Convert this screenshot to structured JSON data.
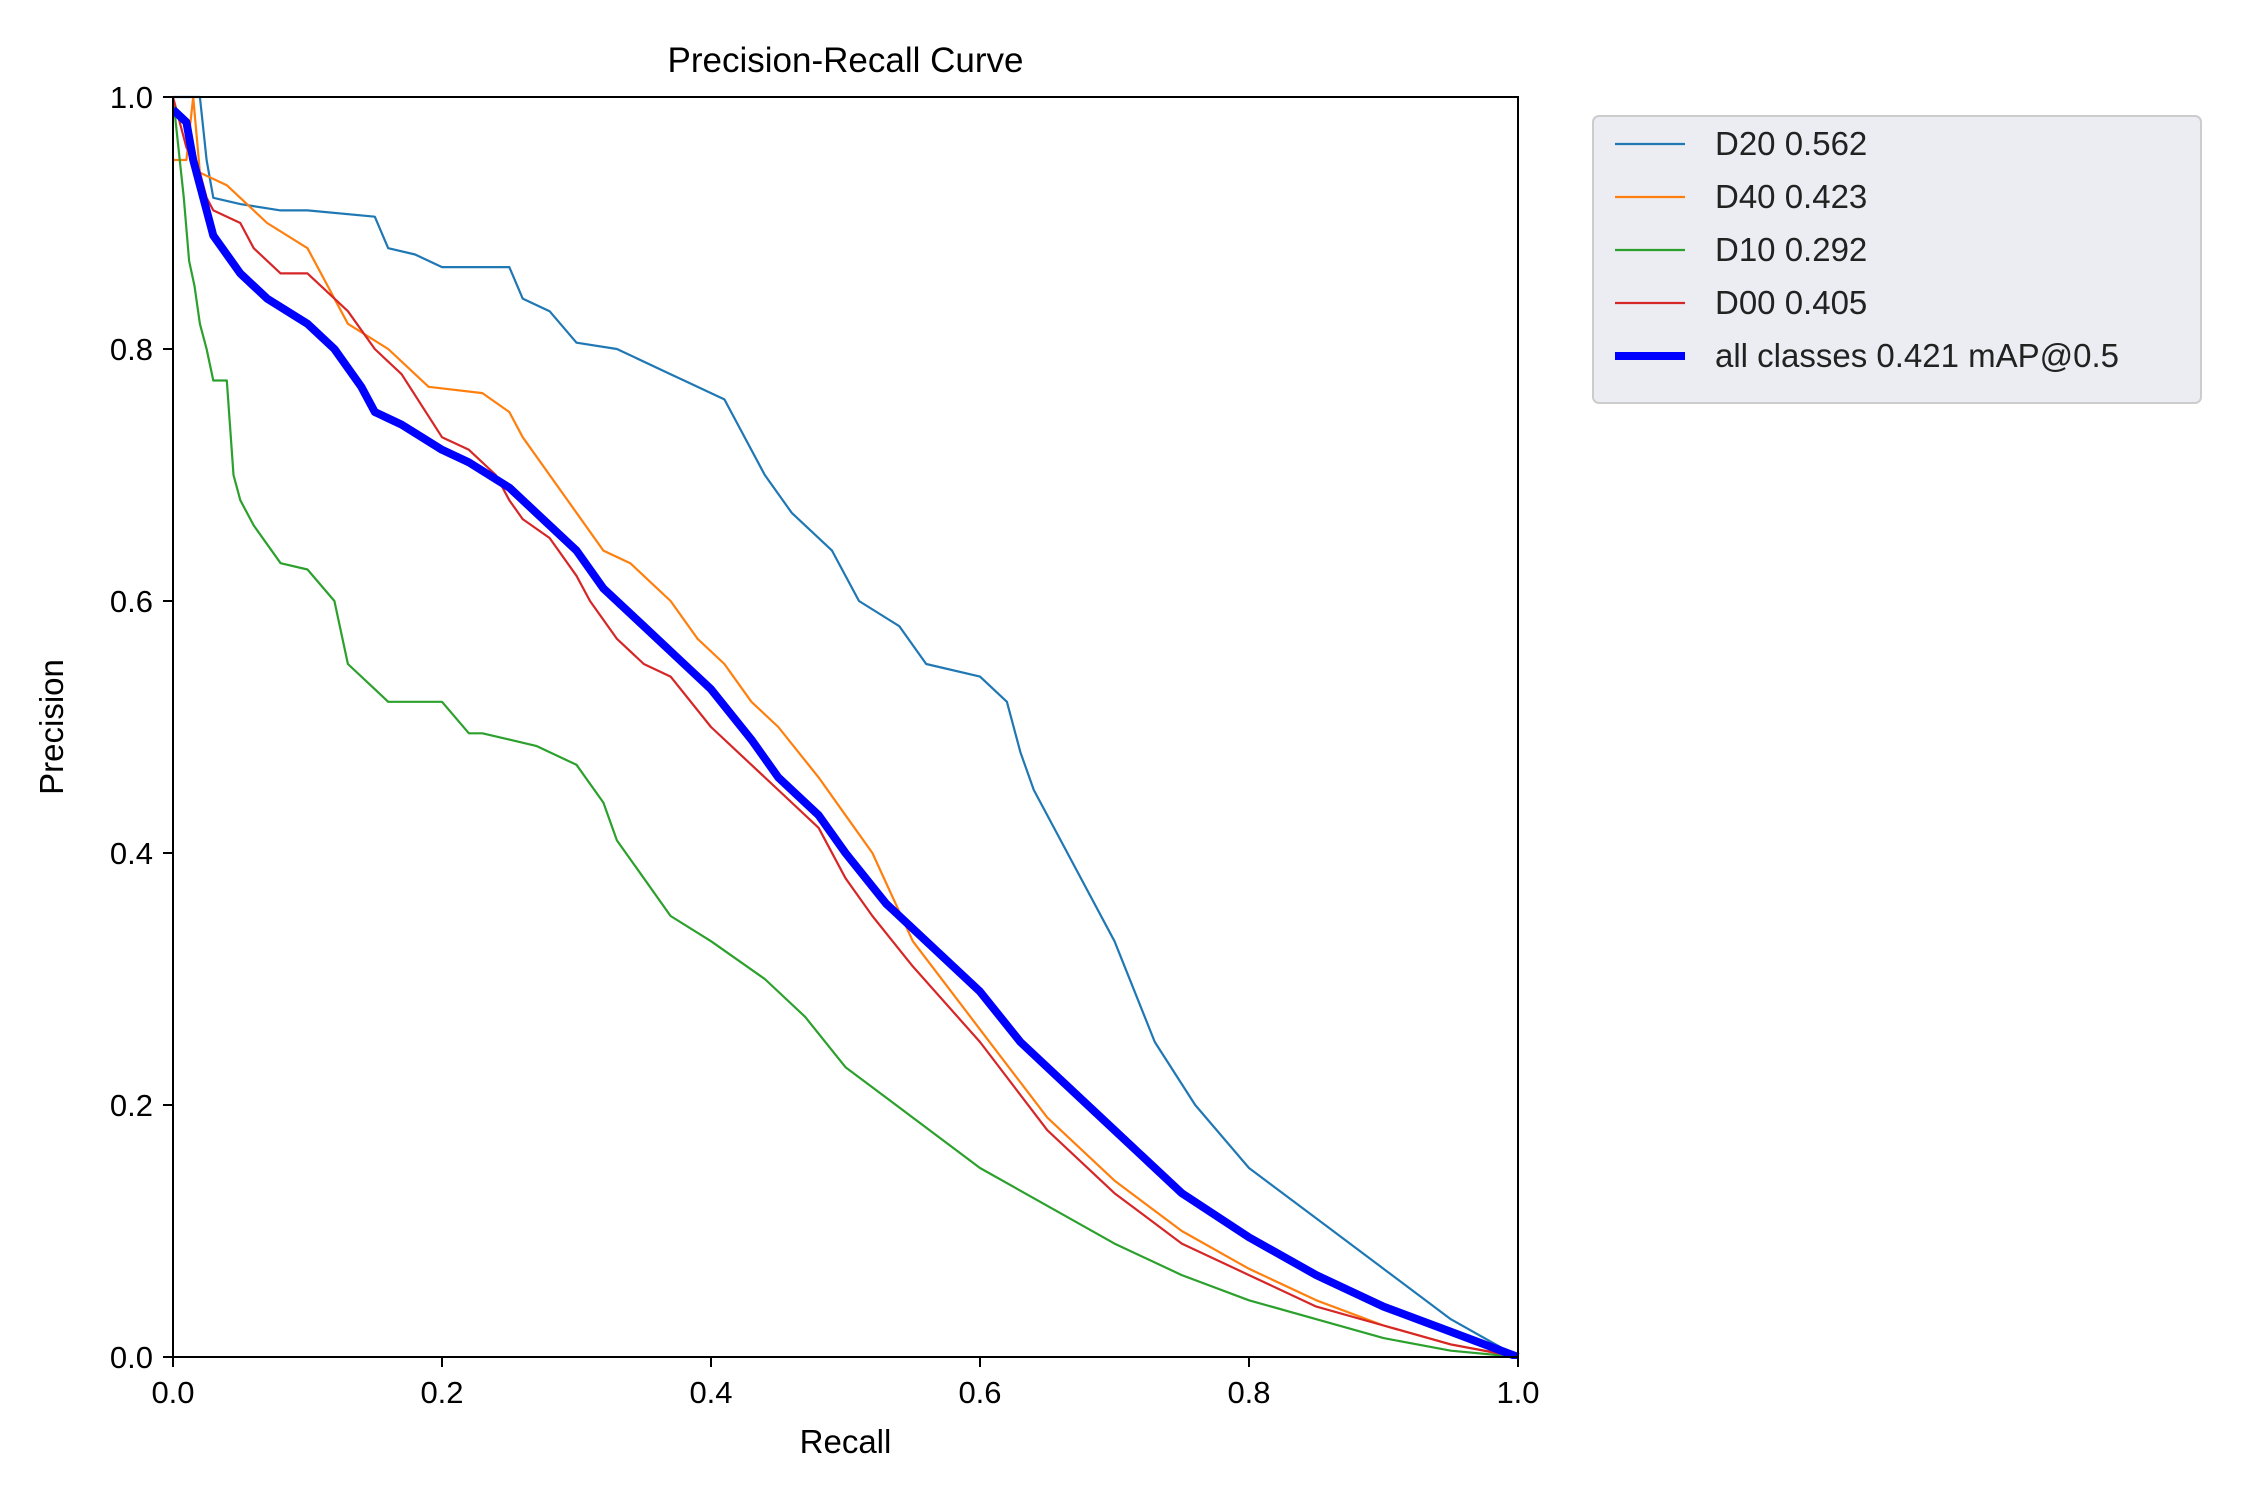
{
  "chart_data": {
    "type": "line",
    "title": "Precision-Recall Curve",
    "xlabel": "Recall",
    "ylabel": "Precision",
    "xlim": [
      0.0,
      1.0
    ],
    "ylim": [
      0.0,
      1.0
    ],
    "xticks": [
      "0.0",
      "0.2",
      "0.4",
      "0.6",
      "0.8",
      "1.0"
    ],
    "yticks": [
      "0.0",
      "0.2",
      "0.4",
      "0.6",
      "0.8",
      "1.0"
    ],
    "grid": false,
    "legend_position": "outside-top-right",
    "series": [
      {
        "name": "D20 0.562",
        "color": "#1f77b4",
        "width": "thin",
        "x": [
          0.0,
          0.01,
          0.02,
          0.025,
          0.03,
          0.05,
          0.08,
          0.1,
          0.15,
          0.16,
          0.18,
          0.2,
          0.25,
          0.26,
          0.28,
          0.3,
          0.33,
          0.37,
          0.4,
          0.41,
          0.44,
          0.46,
          0.49,
          0.51,
          0.54,
          0.56,
          0.6,
          0.62,
          0.63,
          0.64,
          0.66,
          0.7,
          0.73,
          0.76,
          0.8,
          0.85,
          0.9,
          0.95,
          1.0
        ],
        "y": [
          1.0,
          1.0,
          1.0,
          0.95,
          0.92,
          0.915,
          0.91,
          0.91,
          0.905,
          0.88,
          0.875,
          0.865,
          0.865,
          0.84,
          0.83,
          0.805,
          0.8,
          0.78,
          0.765,
          0.76,
          0.7,
          0.67,
          0.64,
          0.6,
          0.58,
          0.55,
          0.54,
          0.52,
          0.48,
          0.45,
          0.41,
          0.33,
          0.25,
          0.2,
          0.15,
          0.11,
          0.07,
          0.03,
          0.0
        ]
      },
      {
        "name": "D40 0.423",
        "color": "#ff7f0e",
        "width": "thin",
        "x": [
          0.0,
          0.01,
          0.015,
          0.02,
          0.04,
          0.07,
          0.1,
          0.13,
          0.16,
          0.18,
          0.19,
          0.23,
          0.25,
          0.26,
          0.28,
          0.3,
          0.32,
          0.34,
          0.36,
          0.37,
          0.39,
          0.41,
          0.43,
          0.45,
          0.48,
          0.5,
          0.52,
          0.55,
          0.6,
          0.65,
          0.7,
          0.75,
          0.8,
          0.85,
          0.9,
          0.95,
          1.0
        ],
        "y": [
          0.95,
          0.95,
          1.0,
          0.94,
          0.93,
          0.9,
          0.88,
          0.82,
          0.8,
          0.78,
          0.77,
          0.765,
          0.75,
          0.73,
          0.7,
          0.67,
          0.64,
          0.63,
          0.61,
          0.6,
          0.57,
          0.55,
          0.52,
          0.5,
          0.46,
          0.43,
          0.4,
          0.33,
          0.26,
          0.19,
          0.14,
          0.1,
          0.07,
          0.045,
          0.025,
          0.01,
          0.0
        ]
      },
      {
        "name": "D10 0.292",
        "color": "#2ca02c",
        "width": "thin",
        "x": [
          0.0,
          0.008,
          0.012,
          0.016,
          0.02,
          0.025,
          0.03,
          0.04,
          0.045,
          0.05,
          0.06,
          0.08,
          0.1,
          0.12,
          0.13,
          0.15,
          0.16,
          0.2,
          0.22,
          0.23,
          0.27,
          0.3,
          0.32,
          0.33,
          0.35,
          0.37,
          0.4,
          0.44,
          0.47,
          0.5,
          0.55,
          0.6,
          0.65,
          0.7,
          0.75,
          0.8,
          0.85,
          0.9,
          0.95,
          1.0
        ],
        "y": [
          1.0,
          0.92,
          0.87,
          0.85,
          0.82,
          0.8,
          0.775,
          0.775,
          0.7,
          0.68,
          0.66,
          0.63,
          0.625,
          0.6,
          0.55,
          0.53,
          0.52,
          0.52,
          0.495,
          0.495,
          0.485,
          0.47,
          0.44,
          0.41,
          0.38,
          0.35,
          0.33,
          0.3,
          0.27,
          0.23,
          0.19,
          0.15,
          0.12,
          0.09,
          0.065,
          0.045,
          0.03,
          0.015,
          0.005,
          0.0
        ]
      },
      {
        "name": "D00 0.405",
        "color": "#d62728",
        "width": "thin",
        "x": [
          0.0,
          0.01,
          0.02,
          0.025,
          0.03,
          0.05,
          0.06,
          0.08,
          0.1,
          0.12,
          0.13,
          0.15,
          0.17,
          0.2,
          0.22,
          0.24,
          0.25,
          0.26,
          0.28,
          0.3,
          0.31,
          0.33,
          0.35,
          0.37,
          0.4,
          0.42,
          0.45,
          0.48,
          0.5,
          0.52,
          0.55,
          0.6,
          0.65,
          0.7,
          0.75,
          0.8,
          0.85,
          0.9,
          0.95,
          1.0
        ],
        "y": [
          1.0,
          0.96,
          0.94,
          0.92,
          0.91,
          0.9,
          0.88,
          0.86,
          0.86,
          0.84,
          0.83,
          0.8,
          0.78,
          0.73,
          0.72,
          0.7,
          0.68,
          0.665,
          0.65,
          0.62,
          0.6,
          0.57,
          0.55,
          0.54,
          0.5,
          0.48,
          0.45,
          0.42,
          0.38,
          0.35,
          0.31,
          0.25,
          0.18,
          0.13,
          0.09,
          0.065,
          0.04,
          0.025,
          0.01,
          0.0
        ]
      },
      {
        "name": "all classes 0.421 mAP@0.5",
        "color": "#0000ff",
        "width": "thick",
        "x": [
          0.0,
          0.01,
          0.015,
          0.02,
          0.025,
          0.03,
          0.05,
          0.07,
          0.1,
          0.12,
          0.14,
          0.15,
          0.17,
          0.2,
          0.22,
          0.25,
          0.27,
          0.3,
          0.32,
          0.35,
          0.38,
          0.4,
          0.43,
          0.45,
          0.48,
          0.5,
          0.53,
          0.56,
          0.6,
          0.63,
          0.66,
          0.7,
          0.75,
          0.8,
          0.85,
          0.9,
          0.95,
          1.0
        ],
        "y": [
          0.99,
          0.98,
          0.95,
          0.93,
          0.91,
          0.89,
          0.86,
          0.84,
          0.82,
          0.8,
          0.77,
          0.75,
          0.74,
          0.72,
          0.71,
          0.69,
          0.67,
          0.64,
          0.61,
          0.58,
          0.55,
          0.53,
          0.49,
          0.46,
          0.43,
          0.4,
          0.36,
          0.33,
          0.29,
          0.25,
          0.22,
          0.18,
          0.13,
          0.095,
          0.065,
          0.04,
          0.02,
          0.0
        ]
      }
    ]
  }
}
